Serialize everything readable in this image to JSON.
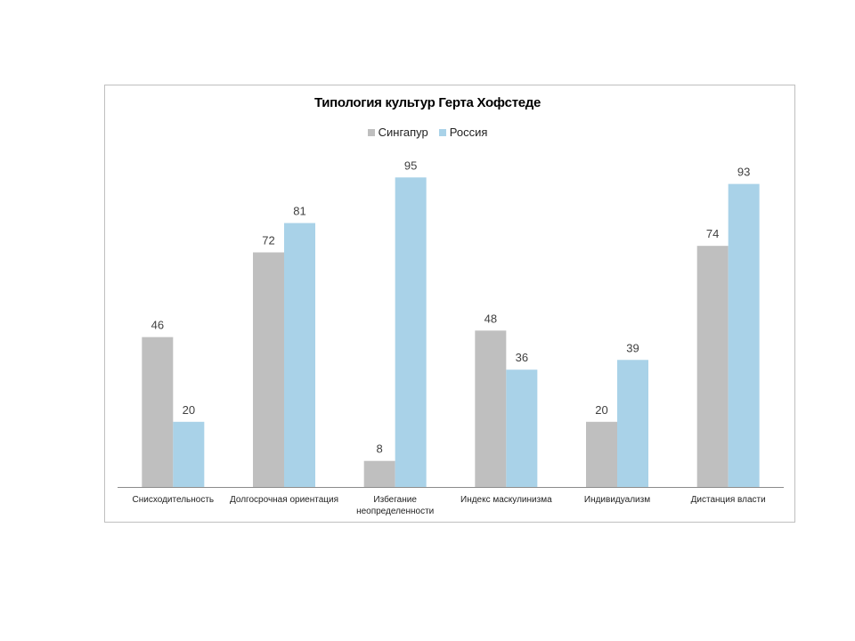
{
  "chart_data": {
    "type": "bar",
    "title": "Типология культур Герта Хофстеде",
    "categories": [
      [
        "Снисходительность"
      ],
      [
        "Долгосрочная ориентация"
      ],
      [
        "Избегание",
        "неопределенности"
      ],
      [
        "Индекс маскулинизма"
      ],
      [
        "Индивидуализм"
      ],
      [
        "Дистанция власти"
      ]
    ],
    "series": [
      {
        "name": "Сингапур",
        "color": "#bfbfbf",
        "values": [
          46,
          72,
          8,
          48,
          20,
          74
        ]
      },
      {
        "name": "Россия",
        "color": "#a9d2e8",
        "values": [
          20,
          81,
          95,
          36,
          39,
          93
        ]
      }
    ],
    "ylim": [
      0,
      100
    ],
    "grid": false,
    "legend": "top"
  }
}
